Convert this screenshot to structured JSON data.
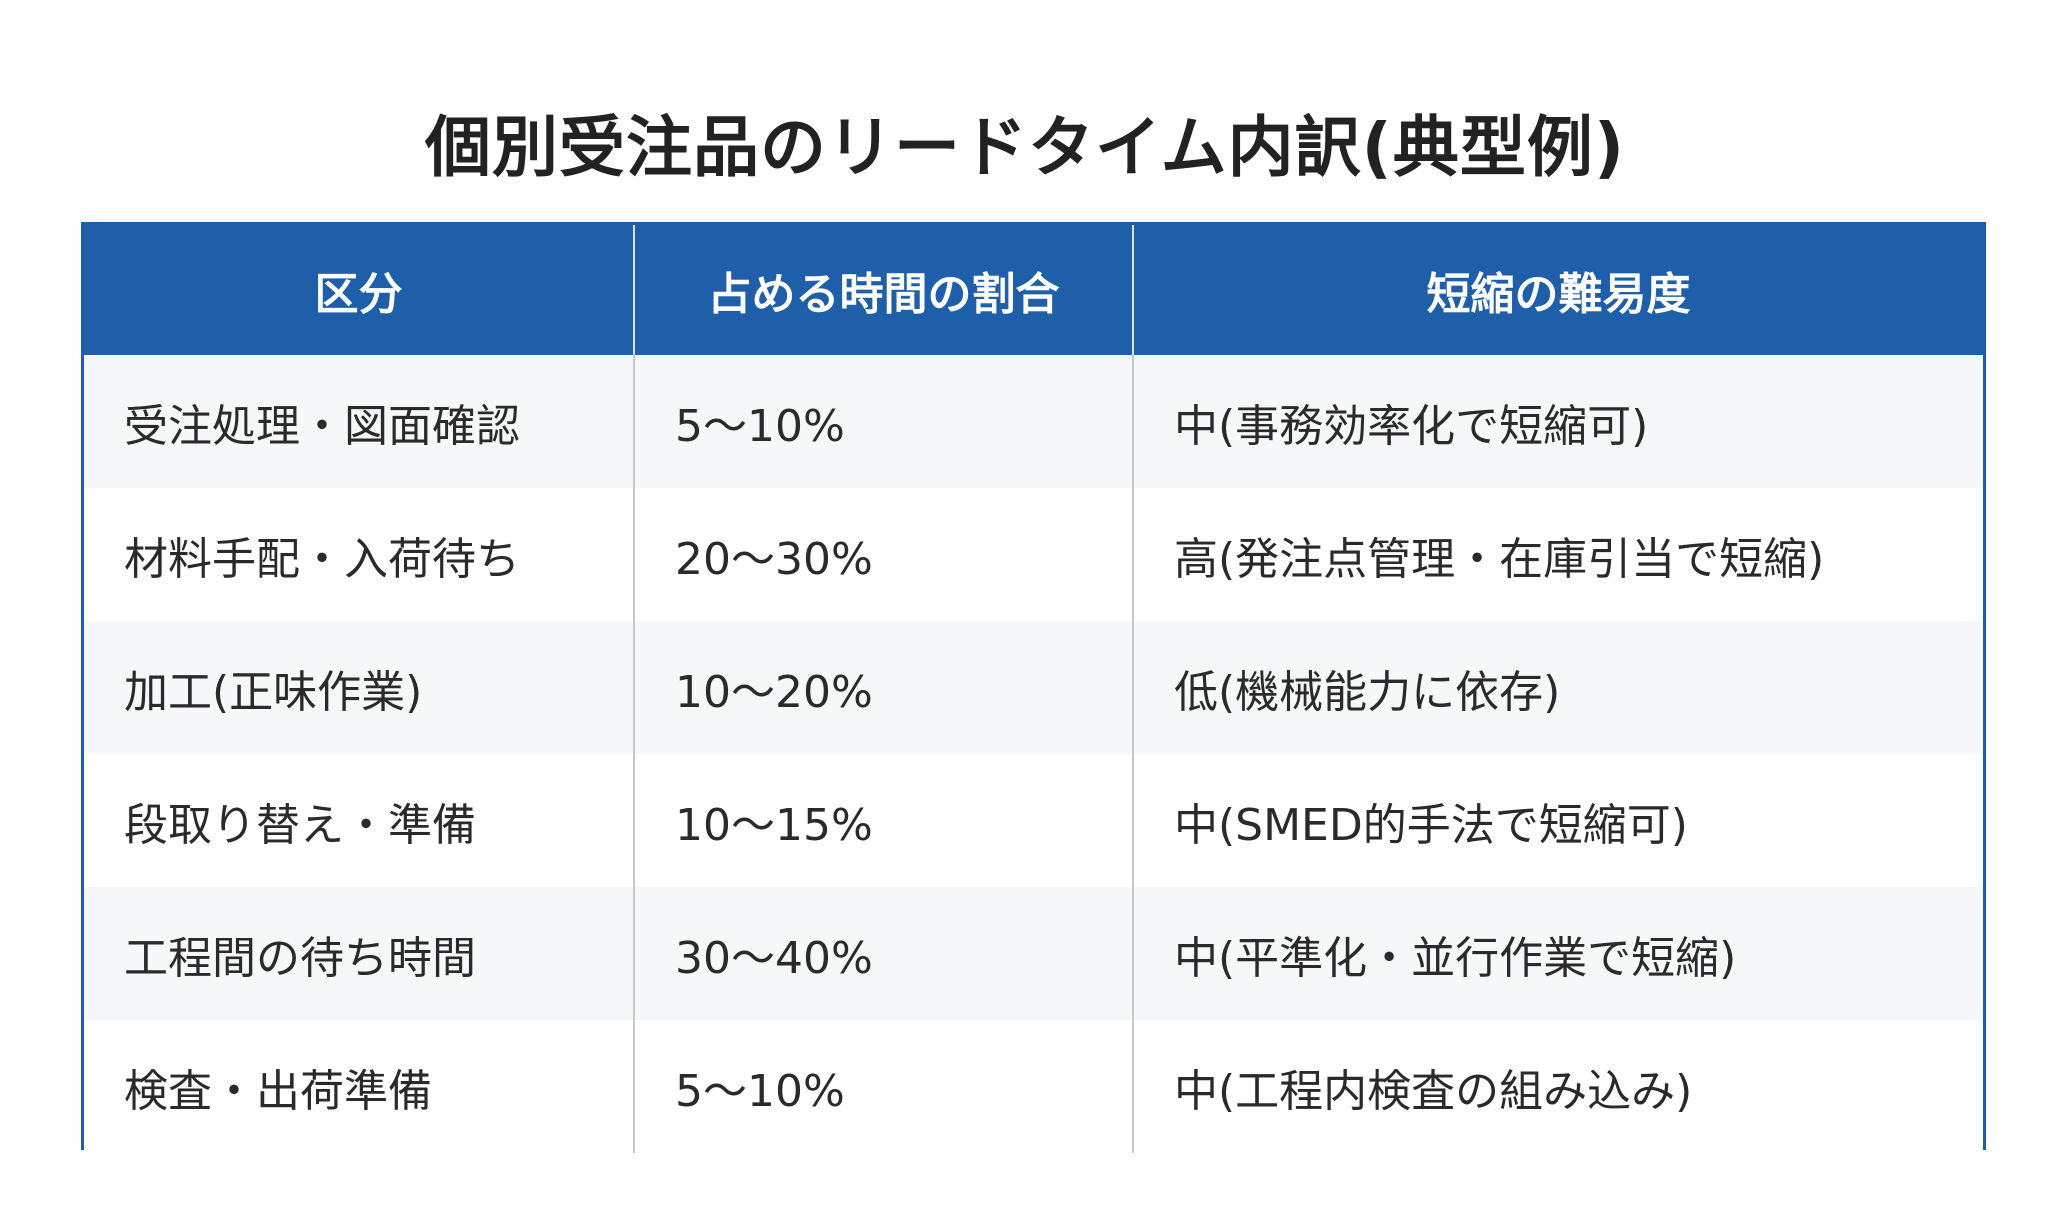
{
  "title": "個別受注品のリードタイム内訳(典型例)",
  "colors": {
    "header_bg": "#1f5ea8",
    "header_text": "#ffffff",
    "row_alt_bg": "#f6f7f9",
    "border": "#1f5ea8"
  },
  "table": {
    "headers": [
      "区分",
      "占める時間の割合",
      "短縮の難易度"
    ],
    "rows": [
      [
        "受注処理・図面確認",
        "5〜10%",
        "中(事務効率化で短縮可)"
      ],
      [
        "材料手配・入荷待ち",
        "20〜30%",
        "高(発注点管理・在庫引当で短縮)"
      ],
      [
        "加工(正味作業)",
        "10〜20%",
        "低(機械能力に依存)"
      ],
      [
        "段取り替え・準備",
        "10〜15%",
        "中(SMED的手法で短縮可)"
      ],
      [
        "工程間の待ち時間",
        "30〜40%",
        "中(平準化・並行作業で短縮)"
      ],
      [
        "検査・出荷準備",
        "5〜10%",
        "中(工程内検査の組み込み)"
      ]
    ]
  }
}
